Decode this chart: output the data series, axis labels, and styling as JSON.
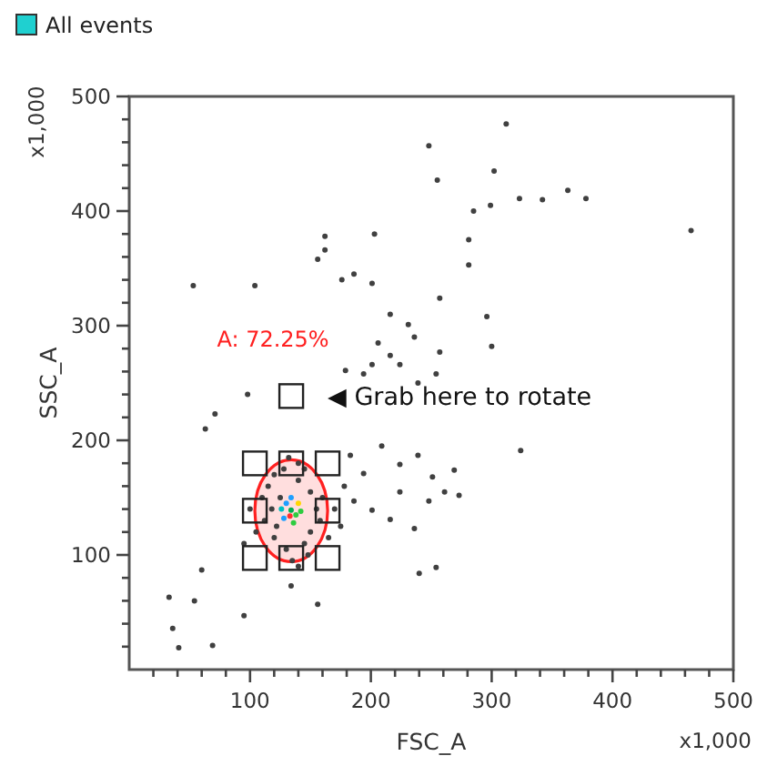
{
  "chart_data": {
    "type": "scatter",
    "xlabel": "FSC_A",
    "ylabel": "SSC_A",
    "legend_title": "All events",
    "marker": "circle",
    "xlim": [
      0,
      500
    ],
    "ylim": [
      0,
      500
    ],
    "xticks": [
      {
        "value": 20,
        "label": null
      },
      {
        "value": 40,
        "label": null
      },
      {
        "value": 60,
        "label": null
      },
      {
        "value": 80,
        "label": null
      },
      100,
      {
        "value": 120,
        "label": null
      },
      {
        "value": 140,
        "label": null
      },
      {
        "value": 160,
        "label": null
      },
      {
        "value": 180,
        "label": null
      },
      200,
      {
        "value": 220,
        "label": null
      },
      {
        "value": 240,
        "label": null
      },
      {
        "value": 260,
        "label": null
      },
      {
        "value": 280,
        "label": null
      },
      300,
      {
        "value": 320,
        "label": null
      },
      {
        "value": 340,
        "label": null
      },
      {
        "value": 360,
        "label": null
      },
      {
        "value": 380,
        "label": null
      },
      400,
      {
        "value": 420,
        "label": null
      },
      {
        "value": 440,
        "label": null
      },
      {
        "value": 460,
        "label": null
      },
      {
        "value": 480,
        "label": null
      },
      500
    ],
    "yticks": [
      {
        "value": 20,
        "label": null
      },
      {
        "value": 40,
        "label": null
      },
      {
        "value": 60,
        "label": null
      },
      {
        "value": 80,
        "label": null
      },
      100,
      {
        "value": 120,
        "label": null
      },
      {
        "value": 140,
        "label": null
      },
      {
        "value": 160,
        "label": null
      },
      {
        "value": 180,
        "label": null
      },
      200,
      {
        "value": 220,
        "label": null
      },
      {
        "value": 240,
        "label": null
      },
      {
        "value": 260,
        "label": null
      },
      {
        "value": 280,
        "label": null
      },
      300,
      {
        "value": 320,
        "label": null
      },
      {
        "value": 340,
        "label": null
      },
      {
        "value": 360,
        "label": null
      },
      {
        "value": 380,
        "label": null
      },
      400,
      {
        "value": 420,
        "label": null
      },
      {
        "value": 440,
        "label": null
      },
      {
        "value": 460,
        "label": null
      },
      {
        "value": 480,
        "label": null
      },
      500
    ],
    "annotations": [
      "A: 72.25%",
      "◀ Grab here to rotate",
      "x1,000",
      "x1,000"
    ],
    "series": [
      {
        "type": "scatter",
        "color": "#404040",
        "x": [
          248,
          255,
          312,
          302,
          285,
          299,
          323,
          342,
          363,
          378,
          465,
          162,
          203,
          281,
          156,
          162,
          176,
          186,
          53,
          104,
          201,
          257,
          281,
          296,
          300,
          257,
          206,
          216,
          224,
          201,
          236,
          194,
          179,
          239,
          254,
          231,
          216,
          183,
          194,
          209,
          224,
          239,
          251,
          261,
          269,
          248,
          224,
          201,
          216,
          236,
          273,
          186,
          33,
          54,
          36,
          41,
          69,
          60,
          95,
          134,
          156,
          240,
          254,
          324,
          63,
          98,
          71,
          115,
          120,
          125,
          140,
          150,
          155,
          150,
          145,
          130,
          120,
          112,
          118,
          128,
          140,
          158,
          110,
          135,
          145,
          122,
          160,
          105,
          148,
          132,
          165,
          100,
          170,
          175,
          178,
          95,
          140
        ],
        "values": [
          457,
          427,
          476,
          435,
          400,
          405,
          411,
          410,
          418,
          411,
          383,
          378,
          380,
          375,
          358,
          366,
          340,
          345,
          335,
          335,
          337,
          324,
          353,
          308,
          282,
          277,
          285,
          274,
          266,
          266,
          290,
          258,
          261,
          250,
          258,
          301,
          310,
          187,
          171,
          195,
          179,
          187,
          168,
          155,
          174,
          147,
          155,
          139,
          131,
          123,
          152,
          147,
          63,
          60,
          36,
          19,
          21,
          87,
          47,
          73,
          57,
          84,
          89,
          191,
          210,
          240,
          223,
          160,
          170,
          150,
          165,
          155,
          140,
          120,
          110,
          105,
          115,
          130,
          140,
          175,
          180,
          130,
          150,
          95,
          175,
          125,
          150,
          120,
          100,
          185,
          115,
          140,
          140,
          125,
          160,
          110,
          90
        ]
      },
      {
        "type": "scatter",
        "x": [
          134,
          130,
          138,
          128,
          140,
          134,
          136,
          126,
          142,
          133
        ],
        "values": [
          139,
          145,
          135,
          132,
          145,
          150,
          128,
          140,
          138,
          134
        ],
        "colors": [
          "#00b050",
          "#1f9fff",
          "#2ecc40",
          "#1f9fff",
          "#ffd700",
          "#1f9fff",
          "#2ecc40",
          "#00c0c0",
          "#2ecc40",
          "#ff3030"
        ]
      }
    ]
  }
}
